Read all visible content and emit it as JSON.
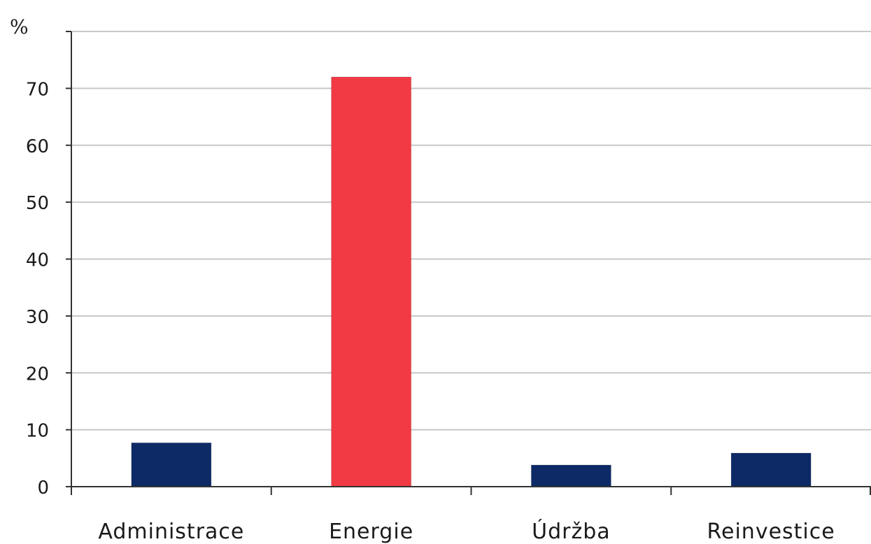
{
  "chart_data": {
    "type": "bar",
    "ylabel": "%",
    "categories": [
      "Administrace",
      "Energie",
      "Údržba",
      "Reinvestice"
    ],
    "values": [
      7.7,
      72,
      3.8,
      5.9
    ],
    "bar_colors": [
      "#0d2a66",
      "#f23a44",
      "#0d2a66",
      "#0d2a66"
    ],
    "ylim": [
      0,
      80
    ],
    "yticks": [
      0,
      10,
      20,
      30,
      40,
      50,
      60,
      70
    ],
    "grid": true,
    "legend": "none"
  }
}
